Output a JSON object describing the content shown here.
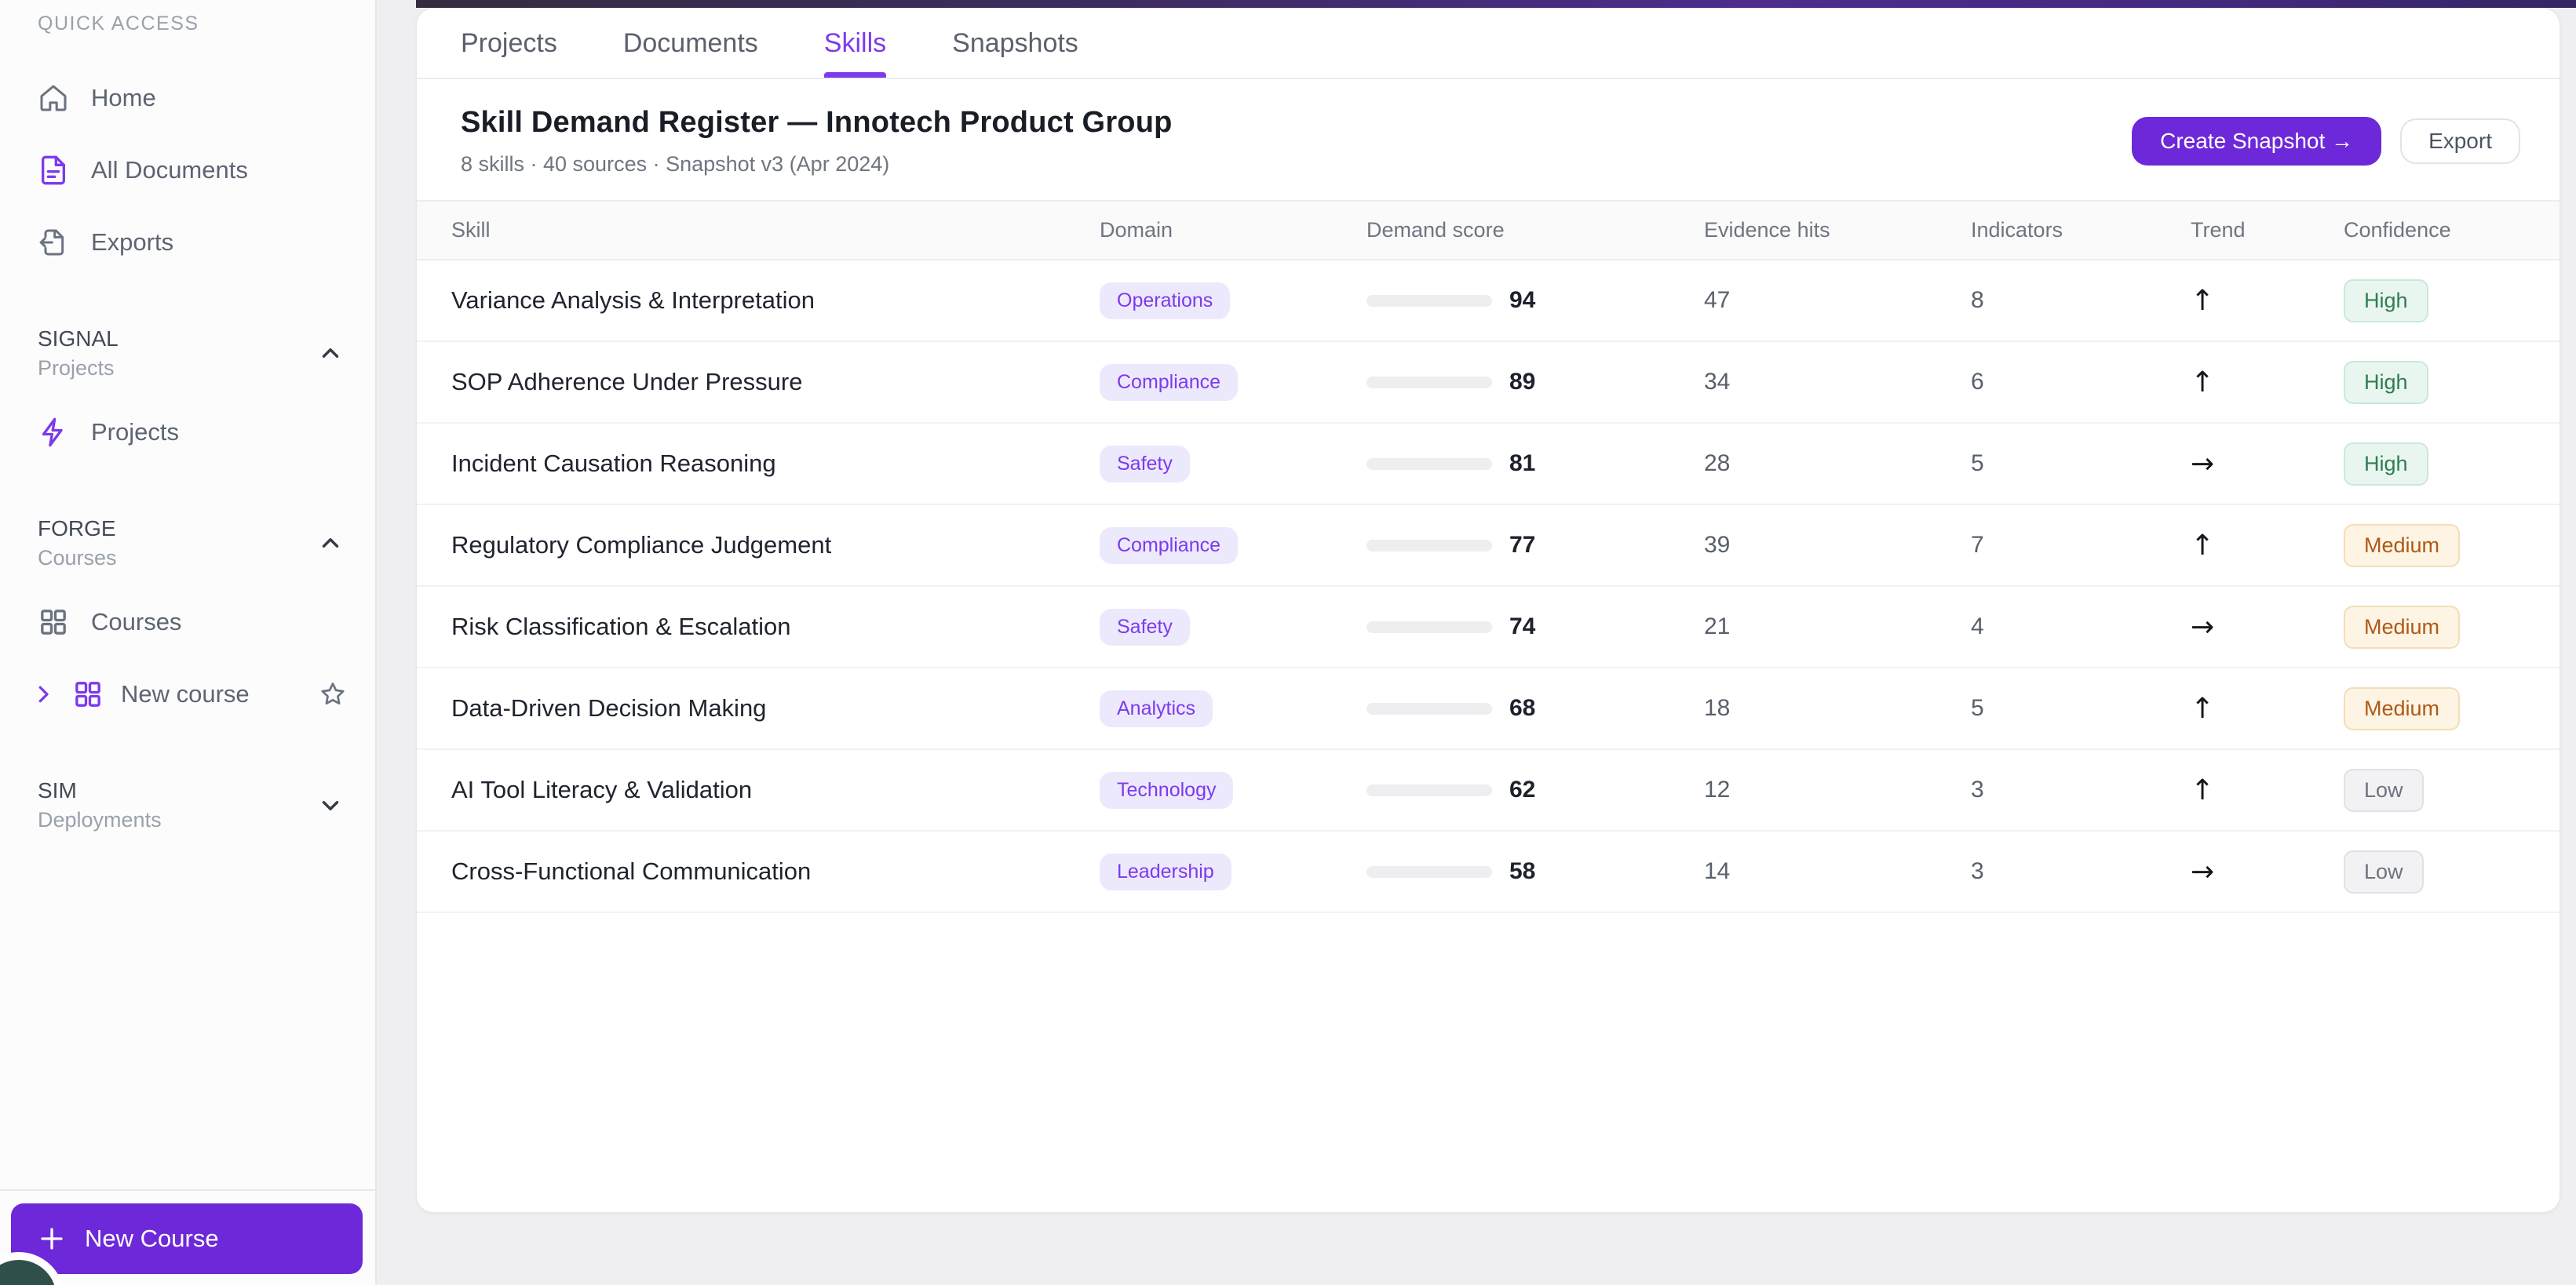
{
  "sidebar": {
    "quick_access_label": "QUICK ACCESS",
    "quick_items": [
      {
        "label": "Home",
        "icon": "home-icon"
      },
      {
        "label": "All Documents",
        "icon": "document-icon"
      },
      {
        "label": "Exports",
        "icon": "export-icon"
      }
    ],
    "sections": [
      {
        "title": "SIGNAL",
        "subtitle": "Projects",
        "collapsed": false
      },
      {
        "title": "FORGE",
        "subtitle": "Courses",
        "collapsed": false
      },
      {
        "title": "SIM",
        "subtitle": "Deployments",
        "collapsed": true
      }
    ],
    "signal_item_label": "Projects",
    "forge_item_label": "Courses",
    "forge_subitem_label": "New course",
    "new_course_button_label": "New Course"
  },
  "tabs": [
    {
      "label": "Projects",
      "active": false
    },
    {
      "label": "Documents",
      "active": false
    },
    {
      "label": "Skills",
      "active": true
    },
    {
      "label": "Snapshots",
      "active": false
    }
  ],
  "header": {
    "title": "Skill Demand Register — Innotech Product Group",
    "subtitle": "8 skills · 40 sources · Snapshot v3 (Apr 2024)",
    "create_snapshot_label": "Create Snapshot →",
    "export_label": "Export"
  },
  "table": {
    "columns": [
      "Skill",
      "Domain",
      "Demand score",
      "Evidence hits",
      "Indicators",
      "Trend",
      "Confidence"
    ],
    "trend_glyphs": {
      "up": "↑",
      "flat": "→"
    },
    "rows": [
      {
        "skill": "Variance Analysis & Interpretation",
        "domain": "Operations",
        "demand_score": 94,
        "evidence_hits": 47,
        "indicators": 8,
        "trend": "up",
        "confidence": "High"
      },
      {
        "skill": "SOP Adherence Under Pressure",
        "domain": "Compliance",
        "demand_score": 89,
        "evidence_hits": 34,
        "indicators": 6,
        "trend": "up",
        "confidence": "High"
      },
      {
        "skill": "Incident Causation Reasoning",
        "domain": "Safety",
        "demand_score": 81,
        "evidence_hits": 28,
        "indicators": 5,
        "trend": "flat",
        "confidence": "High"
      },
      {
        "skill": "Regulatory Compliance Judgement",
        "domain": "Compliance",
        "demand_score": 77,
        "evidence_hits": 39,
        "indicators": 7,
        "trend": "up",
        "confidence": "Medium"
      },
      {
        "skill": "Risk Classification & Escalation",
        "domain": "Safety",
        "demand_score": 74,
        "evidence_hits": 21,
        "indicators": 4,
        "trend": "flat",
        "confidence": "Medium"
      },
      {
        "skill": "Data-Driven Decision Making",
        "domain": "Analytics",
        "demand_score": 68,
        "evidence_hits": 18,
        "indicators": 5,
        "trend": "up",
        "confidence": "Medium"
      },
      {
        "skill": "AI Tool Literacy & Validation",
        "domain": "Technology",
        "demand_score": 62,
        "evidence_hits": 12,
        "indicators": 3,
        "trend": "up",
        "confidence": "Low"
      },
      {
        "skill": "Cross-Functional Communication",
        "domain": "Leadership",
        "demand_score": 58,
        "evidence_hits": 14,
        "indicators": 3,
        "trend": "flat",
        "confidence": "Low"
      }
    ]
  },
  "colors": {
    "accent_purple": "#6d28d9",
    "link_purple": "#7c3aed",
    "bar_fill": "#6c2fdb",
    "domain_badge_bg": "#ede9fd",
    "confidence_high_text": "#2f7d50",
    "confidence_medium_text": "#ad5a18",
    "confidence_low_text": "#6e7380",
    "top_gradient_stops": [
      "#332c40",
      "#4d2c8e",
      "#342564"
    ],
    "page_background": "#efeff1"
  }
}
